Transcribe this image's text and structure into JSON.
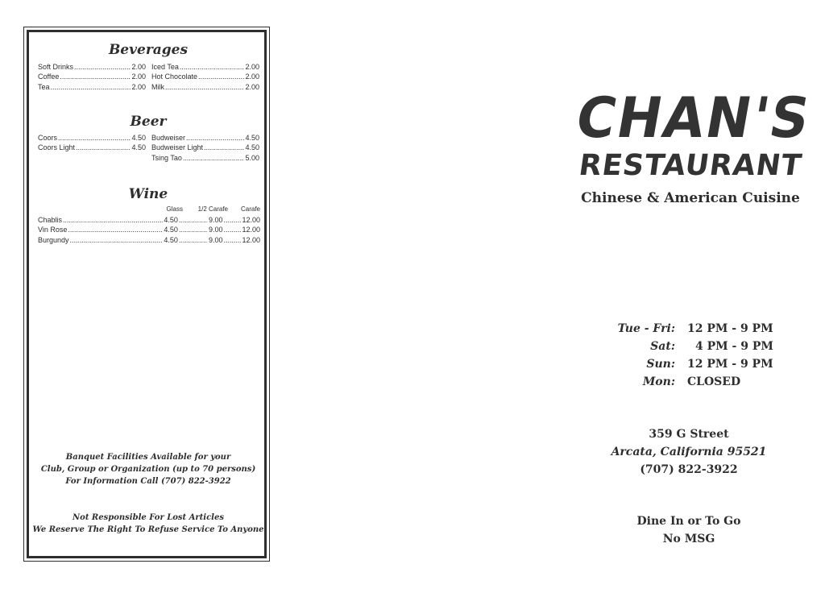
{
  "menu": {
    "beverages": {
      "title": "Beverages",
      "left": [
        {
          "name": "Soft Drinks",
          "price": "2.00"
        },
        {
          "name": "Coffee",
          "price": "2.00"
        },
        {
          "name": "Tea",
          "price": "2.00"
        }
      ],
      "right": [
        {
          "name": "Iced Tea",
          "price": "2.00"
        },
        {
          "name": "Hot Chocolate",
          "price": "2.00"
        },
        {
          "name": "Milk",
          "price": "2.00"
        }
      ]
    },
    "beer": {
      "title": "Beer",
      "left": [
        {
          "name": "Coors",
          "price": "4.50"
        },
        {
          "name": "Coors Light",
          "price": "4.50"
        }
      ],
      "right": [
        {
          "name": "Budweiser",
          "price": "4.50"
        },
        {
          "name": "Budweiser Light",
          "price": "4.50"
        },
        {
          "name": "Tsing Tao",
          "price": "5.00"
        }
      ]
    },
    "wine": {
      "title": "Wine",
      "headers": [
        "Glass",
        "1/2 Carafe",
        "Carafe"
      ],
      "rows": [
        {
          "name": "Chablis",
          "glass": "4.50",
          "half": "9.00",
          "carafe": "12.00"
        },
        {
          "name": "Vin Rose",
          "glass": "4.50",
          "half": "9.00",
          "carafe": "12.00"
        },
        {
          "name": "Burgundy",
          "glass": "4.50",
          "half": "9.00",
          "carafe": "12.00"
        }
      ]
    },
    "banquet": [
      "Banquet Facilities Available for your",
      "Club, Group or Organization (up to 70 persons)",
      "For Information Call (707) 822-3922"
    ],
    "disclaimer": [
      "Not Responsible For Lost Articles",
      "We Reserve The Right To Refuse Service To Anyone"
    ]
  },
  "cover": {
    "logo_line1": "CHAN'S",
    "logo_line2": "RESTAURANT",
    "tagline": "Chinese & American Cuisine",
    "hours": [
      {
        "days": "Tue - Fri:",
        "time": "12 PM - 9 PM"
      },
      {
        "days": "Sat:",
        "time": "4 PM - 9 PM"
      },
      {
        "days": "Sun:",
        "time": "12 PM - 9 PM"
      },
      {
        "days": "Mon:",
        "time": "CLOSED"
      }
    ],
    "address": [
      "359 G Street",
      "Arcata, California 95521",
      "(707) 822-3922"
    ],
    "service": [
      "Dine In or To Go",
      "No MSG"
    ]
  }
}
